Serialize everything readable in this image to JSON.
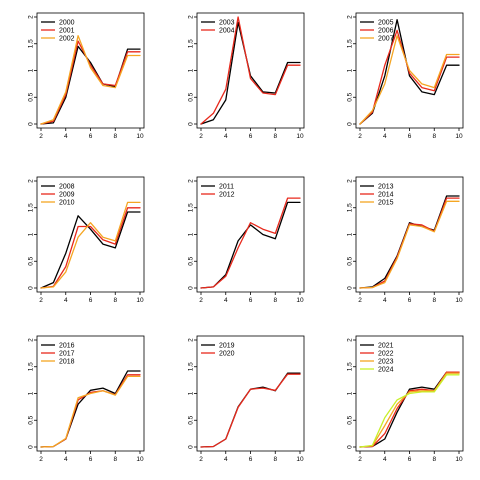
{
  "chart_data": [
    {
      "type": "line",
      "xlim": [
        2,
        10
      ],
      "ylim": [
        0,
        2
      ],
      "xticks": [
        2,
        4,
        6,
        8,
        10
      ],
      "yticks": [
        0,
        0.5,
        1,
        1.5,
        2
      ],
      "x": [
        2,
        3,
        4,
        5,
        6,
        7,
        8,
        9,
        10
      ],
      "series": [
        {
          "name": "2000",
          "color": "#000000",
          "values": [
            0,
            0.02,
            0.5,
            1.45,
            1.15,
            0.75,
            0.7,
            1.4,
            1.4
          ]
        },
        {
          "name": "2001",
          "color": "#e8291c",
          "values": [
            0,
            0.05,
            0.55,
            1.55,
            1.1,
            0.75,
            0.72,
            1.35,
            1.35
          ]
        },
        {
          "name": "2002",
          "color": "#f5a623",
          "values": [
            0,
            0.08,
            0.6,
            1.65,
            1.05,
            0.72,
            0.68,
            1.28,
            1.28
          ]
        }
      ]
    },
    {
      "type": "line",
      "xlim": [
        2,
        10
      ],
      "ylim": [
        0,
        2
      ],
      "xticks": [
        2,
        4,
        6,
        8,
        10
      ],
      "yticks": [
        0,
        0.5,
        1,
        1.5,
        2
      ],
      "x": [
        2,
        3,
        4,
        5,
        6,
        7,
        8,
        9,
        10
      ],
      "series": [
        {
          "name": "2003",
          "color": "#000000",
          "values": [
            0,
            0.08,
            0.45,
            1.9,
            0.9,
            0.6,
            0.58,
            1.15,
            1.15
          ]
        },
        {
          "name": "2004",
          "color": "#e8291c",
          "values": [
            0,
            0.2,
            0.65,
            2.0,
            0.85,
            0.58,
            0.55,
            1.1,
            1.1
          ]
        }
      ]
    },
    {
      "type": "line",
      "xlim": [
        2,
        10
      ],
      "ylim": [
        0,
        2
      ],
      "xticks": [
        2,
        4,
        6,
        8,
        10
      ],
      "yticks": [
        0,
        0.5,
        1,
        1.5,
        2
      ],
      "x": [
        2,
        3,
        4,
        5,
        6,
        7,
        8,
        9,
        10
      ],
      "series": [
        {
          "name": "2005",
          "color": "#000000",
          "values": [
            0,
            0.2,
            0.9,
            1.95,
            0.9,
            0.6,
            0.55,
            1.1,
            1.1
          ]
        },
        {
          "name": "2006",
          "color": "#e8291c",
          "values": [
            0,
            0.22,
            1.1,
            1.75,
            0.95,
            0.68,
            0.62,
            1.25,
            1.25
          ]
        },
        {
          "name": "2007",
          "color": "#f5a623",
          "values": [
            0,
            0.25,
            0.75,
            1.65,
            1.0,
            0.75,
            0.68,
            1.3,
            1.3
          ]
        }
      ]
    },
    {
      "type": "line",
      "xlim": [
        2,
        10
      ],
      "ylim": [
        0,
        2
      ],
      "xticks": [
        2,
        4,
        6,
        8,
        10
      ],
      "yticks": [
        0,
        0.5,
        1,
        1.5,
        2
      ],
      "x": [
        2,
        3,
        4,
        5,
        6,
        7,
        8,
        9,
        10
      ],
      "series": [
        {
          "name": "2008",
          "color": "#000000",
          "values": [
            0,
            0.1,
            0.65,
            1.35,
            1.1,
            0.82,
            0.75,
            1.42,
            1.42
          ]
        },
        {
          "name": "2009",
          "color": "#e8291c",
          "values": [
            0,
            0.03,
            0.4,
            1.15,
            1.15,
            0.9,
            0.82,
            1.5,
            1.5
          ]
        },
        {
          "name": "2010",
          "color": "#f5a623",
          "values": [
            0,
            0.02,
            0.3,
            0.95,
            1.22,
            0.95,
            0.88,
            1.6,
            1.6
          ]
        }
      ]
    },
    {
      "type": "line",
      "xlim": [
        2,
        10
      ],
      "ylim": [
        0,
        2
      ],
      "xticks": [
        2,
        4,
        6,
        8,
        10
      ],
      "yticks": [
        0,
        0.5,
        1,
        1.5,
        2
      ],
      "x": [
        2,
        3,
        4,
        5,
        6,
        7,
        8,
        9,
        10
      ],
      "series": [
        {
          "name": "2011",
          "color": "#000000",
          "values": [
            0,
            0.02,
            0.25,
            0.88,
            1.18,
            1.0,
            0.92,
            1.6,
            1.6
          ]
        },
        {
          "name": "2012",
          "color": "#e8291c",
          "values": [
            0,
            0.02,
            0.22,
            0.75,
            1.22,
            1.1,
            1.02,
            1.68,
            1.68
          ]
        }
      ]
    },
    {
      "type": "line",
      "xlim": [
        2,
        10
      ],
      "ylim": [
        0,
        2
      ],
      "xticks": [
        2,
        4,
        6,
        8,
        10
      ],
      "yticks": [
        0,
        0.5,
        1,
        1.5,
        2
      ],
      "x": [
        2,
        3,
        4,
        5,
        6,
        7,
        8,
        9,
        10
      ],
      "series": [
        {
          "name": "2013",
          "color": "#000000",
          "values": [
            0,
            0.02,
            0.18,
            0.6,
            1.22,
            1.15,
            1.08,
            1.72,
            1.72
          ]
        },
        {
          "name": "2014",
          "color": "#e8291c",
          "values": [
            0,
            0.01,
            0.13,
            0.58,
            1.2,
            1.18,
            1.06,
            1.68,
            1.68
          ]
        },
        {
          "name": "2015",
          "color": "#f5a623",
          "values": [
            0,
            0.01,
            0.1,
            0.55,
            1.18,
            1.15,
            1.05,
            1.62,
            1.62
          ]
        }
      ]
    },
    {
      "type": "line",
      "xlim": [
        2,
        10
      ],
      "ylim": [
        0,
        2
      ],
      "xticks": [
        2,
        4,
        6,
        8,
        10
      ],
      "yticks": [
        0,
        0.5,
        1,
        1.5,
        2
      ],
      "x": [
        2,
        3,
        4,
        5,
        6,
        7,
        8,
        9,
        10
      ],
      "series": [
        {
          "name": "2016",
          "color": "#000000",
          "values": [
            0,
            0.01,
            0.15,
            0.8,
            1.06,
            1.1,
            1.0,
            1.42,
            1.42
          ]
        },
        {
          "name": "2017",
          "color": "#e8291c",
          "values": [
            0,
            0.01,
            0.15,
            0.88,
            1.02,
            1.05,
            0.98,
            1.35,
            1.35
          ]
        },
        {
          "name": "2018",
          "color": "#f5a623",
          "values": [
            0,
            0.01,
            0.16,
            0.92,
            1.0,
            1.05,
            0.97,
            1.32,
            1.32
          ]
        }
      ]
    },
    {
      "type": "line",
      "xlim": [
        2,
        10
      ],
      "ylim": [
        0,
        2
      ],
      "xticks": [
        2,
        4,
        6,
        8,
        10
      ],
      "yticks": [
        0,
        0.5,
        1,
        1.5,
        2
      ],
      "x": [
        2,
        3,
        4,
        5,
        6,
        7,
        8,
        9,
        10
      ],
      "series": [
        {
          "name": "2019",
          "color": "#000000",
          "values": [
            0,
            0.01,
            0.15,
            0.75,
            1.08,
            1.12,
            1.05,
            1.38,
            1.38
          ]
        },
        {
          "name": "2020",
          "color": "#e8291c",
          "values": [
            0,
            0.01,
            0.15,
            0.74,
            1.08,
            1.1,
            1.06,
            1.36,
            1.36
          ]
        }
      ]
    },
    {
      "type": "line",
      "xlim": [
        2,
        10
      ],
      "ylim": [
        0,
        2
      ],
      "xticks": [
        2,
        4,
        6,
        8,
        10
      ],
      "yticks": [
        0,
        0.5,
        1,
        1.5,
        2
      ],
      "x": [
        2,
        3,
        4,
        5,
        6,
        7,
        8,
        9,
        10
      ],
      "series": [
        {
          "name": "2021",
          "color": "#000000",
          "values": [
            0,
            0.01,
            0.15,
            0.65,
            1.08,
            1.12,
            1.08,
            1.4,
            1.4
          ]
        },
        {
          "name": "2022",
          "color": "#e8291c",
          "values": [
            0,
            0.01,
            0.25,
            0.72,
            1.05,
            1.08,
            1.05,
            1.4,
            1.4
          ]
        },
        {
          "name": "2023",
          "color": "#f5a623",
          "values": [
            0,
            0.02,
            0.4,
            0.8,
            1.03,
            1.05,
            1.05,
            1.38,
            1.38
          ]
        },
        {
          "name": "2024",
          "color": "#c8f02a",
          "values": [
            0,
            0.03,
            0.55,
            0.88,
            1.0,
            1.03,
            1.03,
            1.35,
            1.35
          ]
        }
      ]
    }
  ]
}
